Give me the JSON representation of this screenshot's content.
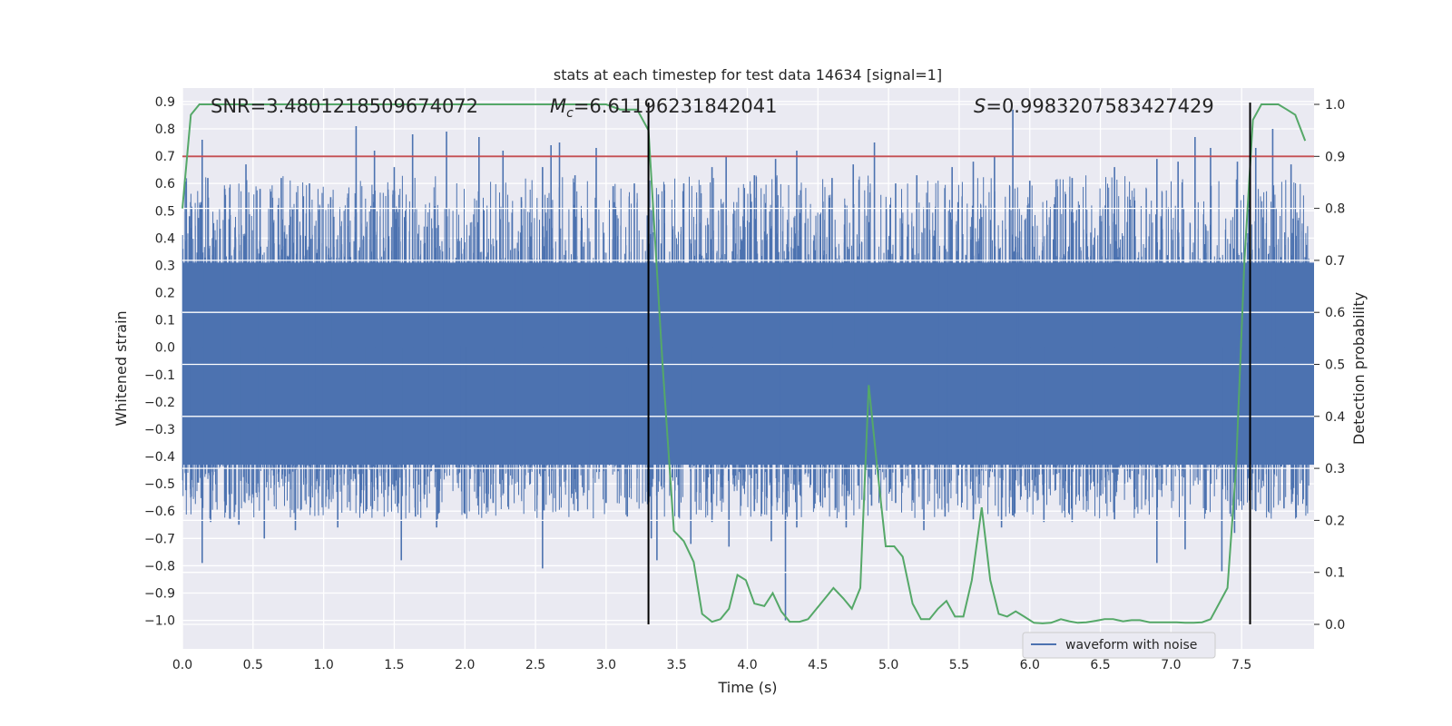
{
  "chart_data": {
    "type": "line",
    "title": "stats at each timestep for test data 14634 [signal=1]",
    "xlabel": "Time (s)",
    "ylabel_left": "Whitened strain",
    "ylabel_right": "Detection probability",
    "xlim": [
      0.0,
      8.0
    ],
    "ylim_left": [
      -1.09,
      0.97
    ],
    "ylim_right": [
      -0.05,
      1.05
    ],
    "x_ticks": [
      "0.0",
      "0.5",
      "1.0",
      "1.5",
      "2.0",
      "2.5",
      "3.0",
      "3.5",
      "4.0",
      "4.5",
      "5.0",
      "5.5",
      "6.0",
      "6.5",
      "7.0",
      "7.5"
    ],
    "y_left_ticks": [
      "0.9",
      "0.8",
      "0.7",
      "0.6",
      "0.5",
      "0.4",
      "0.3",
      "0.2",
      "0.1",
      "0.0",
      "−0.1",
      "−0.2",
      "−0.3",
      "−0.4",
      "−0.5",
      "−0.6",
      "−0.7",
      "−0.8",
      "−0.9",
      "−1.0"
    ],
    "y_right_ticks": [
      "1.0",
      "0.9",
      "0.8",
      "0.7",
      "0.6",
      "0.5",
      "0.4",
      "0.3",
      "0.2",
      "0.1",
      "0.0"
    ],
    "grid": true,
    "legend_position": "bottom-right",
    "annotations": {
      "snr": "SNR=3.4801218509674072",
      "mc_symbol": "M",
      "mc_sub": "c",
      "mc_value": "=6.61196231842041",
      "s_symbol": "S",
      "s_value": "=0.9983207583427429"
    },
    "threshold": {
      "value_right": 0.9,
      "color": "#c44e52"
    },
    "vlines_x": [
      3.3,
      7.56
    ],
    "series": [
      {
        "name": "waveform with noise",
        "axis": "left",
        "color": "#4c72b0",
        "noise_band": [
          -0.43,
          0.31
        ],
        "peaks": [
          [
            0.05,
            0.48
          ],
          [
            0.14,
            0.76
          ],
          [
            0.18,
            0.62
          ],
          [
            0.3,
            0.58
          ],
          [
            0.45,
            0.67
          ],
          [
            0.55,
            0.58
          ],
          [
            0.7,
            0.62
          ],
          [
            0.9,
            0.6
          ],
          [
            1.05,
            0.55
          ],
          [
            1.23,
            0.81
          ],
          [
            1.36,
            0.72
          ],
          [
            1.5,
            0.66
          ],
          [
            1.63,
            0.78
          ],
          [
            1.87,
            0.79
          ],
          [
            2.1,
            0.77
          ],
          [
            2.27,
            0.72
          ],
          [
            2.4,
            0.55
          ],
          [
            2.55,
            0.66
          ],
          [
            2.61,
            0.74
          ],
          [
            2.67,
            0.75
          ],
          [
            2.78,
            0.63
          ],
          [
            2.93,
            0.73
          ],
          [
            3.05,
            0.59
          ],
          [
            3.2,
            0.6
          ],
          [
            3.37,
            0.56
          ],
          [
            3.55,
            0.6
          ],
          [
            3.75,
            0.66
          ],
          [
            3.85,
            0.7
          ],
          [
            4.05,
            0.63
          ],
          [
            4.2,
            0.69
          ],
          [
            4.35,
            0.72
          ],
          [
            4.6,
            0.62
          ],
          [
            4.75,
            0.67
          ],
          [
            4.9,
            0.75
          ],
          [
            5.05,
            0.6
          ],
          [
            5.2,
            0.63
          ],
          [
            5.45,
            0.66
          ],
          [
            5.6,
            0.68
          ],
          [
            5.75,
            0.7
          ],
          [
            5.88,
            0.87
          ],
          [
            6.0,
            0.61
          ],
          [
            6.3,
            0.62
          ],
          [
            6.6,
            0.66
          ],
          [
            6.9,
            0.69
          ],
          [
            7.05,
            0.68
          ],
          [
            7.17,
            0.77
          ],
          [
            7.28,
            0.73
          ],
          [
            7.47,
            0.68
          ],
          [
            7.6,
            0.73
          ],
          [
            7.72,
            0.8
          ],
          [
            7.85,
            0.67
          ],
          [
            7.95,
            0.33
          ]
        ],
        "troughs": [
          [
            0.06,
            -0.55
          ],
          [
            0.14,
            -0.79
          ],
          [
            0.2,
            -0.64
          ],
          [
            0.4,
            -0.65
          ],
          [
            0.58,
            -0.7
          ],
          [
            0.8,
            -0.67
          ],
          [
            1.1,
            -0.66
          ],
          [
            1.3,
            -0.6
          ],
          [
            1.55,
            -0.78
          ],
          [
            1.65,
            -0.62
          ],
          [
            1.8,
            -0.66
          ],
          [
            2.0,
            -0.61
          ],
          [
            2.2,
            -0.57
          ],
          [
            2.55,
            -0.81
          ],
          [
            2.8,
            -0.6
          ],
          [
            3.0,
            -0.57
          ],
          [
            3.15,
            -0.62
          ],
          [
            3.32,
            -0.7
          ],
          [
            3.36,
            -0.78
          ],
          [
            3.6,
            -0.72
          ],
          [
            3.75,
            -0.64
          ],
          [
            3.87,
            -0.73
          ],
          [
            4.05,
            -0.6
          ],
          [
            4.17,
            -0.71
          ],
          [
            4.27,
            -1.0
          ],
          [
            4.35,
            -0.66
          ],
          [
            4.55,
            -0.55
          ],
          [
            4.7,
            -0.66
          ],
          [
            4.88,
            -0.58
          ],
          [
            5.05,
            -0.57
          ],
          [
            5.25,
            -0.67
          ],
          [
            5.4,
            -0.62
          ],
          [
            5.6,
            -0.63
          ],
          [
            5.8,
            -0.66
          ],
          [
            6.1,
            -0.64
          ],
          [
            6.3,
            -0.64
          ],
          [
            6.6,
            -0.63
          ],
          [
            6.9,
            -0.79
          ],
          [
            7.1,
            -0.74
          ],
          [
            7.36,
            -0.82
          ],
          [
            7.45,
            -0.68
          ],
          [
            7.6,
            -0.6
          ],
          [
            7.8,
            -0.59
          ],
          [
            7.95,
            -0.43
          ]
        ]
      },
      {
        "name": "detection probability",
        "axis": "right",
        "color": "#55a868",
        "x": [
          0.0,
          0.06,
          0.12,
          0.2,
          3.0,
          3.1,
          3.22,
          3.3,
          3.4,
          3.48,
          3.55,
          3.62,
          3.68,
          3.75,
          3.81,
          3.87,
          3.93,
          3.99,
          4.05,
          4.12,
          4.18,
          4.24,
          4.3,
          4.37,
          4.43,
          4.49,
          4.55,
          4.61,
          4.68,
          4.74,
          4.8,
          4.86,
          4.92,
          4.98,
          5.04,
          5.1,
          5.17,
          5.23,
          5.29,
          5.35,
          5.41,
          5.47,
          5.53,
          5.59,
          5.66,
          5.72,
          5.78,
          5.84,
          5.9,
          5.96,
          6.03,
          6.09,
          6.15,
          6.22,
          6.28,
          6.34,
          6.4,
          6.47,
          6.53,
          6.59,
          6.66,
          6.72,
          6.78,
          6.85,
          6.91,
          6.97,
          7.04,
          7.1,
          7.16,
          7.22,
          7.28,
          7.34,
          7.4,
          7.46,
          7.52,
          7.58,
          7.64,
          7.7,
          7.76,
          7.82,
          7.88,
          7.95
        ],
        "y": [
          0.8,
          0.98,
          1.0,
          1.0,
          1.0,
          0.99,
          0.99,
          0.95,
          0.5,
          0.18,
          0.16,
          0.12,
          0.02,
          0.005,
          0.01,
          0.03,
          0.095,
          0.085,
          0.04,
          0.035,
          0.06,
          0.025,
          0.005,
          0.005,
          0.01,
          0.03,
          0.05,
          0.07,
          0.05,
          0.03,
          0.07,
          0.46,
          0.3,
          0.15,
          0.15,
          0.13,
          0.04,
          0.01,
          0.01,
          0.03,
          0.045,
          0.015,
          0.015,
          0.085,
          0.225,
          0.085,
          0.02,
          0.015,
          0.025,
          0.015,
          0.003,
          0.002,
          0.003,
          0.01,
          0.006,
          0.003,
          0.004,
          0.007,
          0.01,
          0.01,
          0.006,
          0.008,
          0.008,
          0.004,
          0.004,
          0.004,
          0.004,
          0.003,
          0.003,
          0.004,
          0.01,
          0.04,
          0.07,
          0.3,
          0.7,
          0.97,
          1.0,
          1.0,
          1.0,
          0.99,
          0.98,
          0.93
        ]
      }
    ]
  }
}
